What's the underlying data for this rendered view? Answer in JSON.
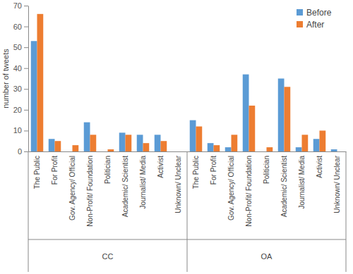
{
  "chart_data": {
    "type": "bar",
    "y_label": "number of tweets",
    "categories": [
      "The Public",
      "For Profit",
      "Gov. Agency/ Official",
      "Non-Profit/ Foundation",
      "Politician",
      "Academic/ Scientist",
      "Journalist/ Media",
      "Activist",
      "Unknown/ Unclear",
      "The Public",
      "For Profit",
      "Gov. Agency/ Official",
      "Non-Profit/ Foundation",
      "Politician",
      "Academic/ Scientist",
      "Journalist/ Media",
      "Activist",
      "Unknown/ Unclear"
    ],
    "groups": [
      "CC",
      "OA"
    ],
    "series": [
      {
        "name": "Before",
        "color": "#5b9bd5",
        "values": [
          53,
          6,
          0,
          14,
          0,
          9,
          8,
          8,
          0,
          15,
          4,
          2,
          37,
          0,
          35,
          2,
          6,
          1
        ]
      },
      {
        "name": "After",
        "color": "#ed7d31",
        "values": [
          66,
          5,
          3,
          8,
          1,
          8,
          4,
          5,
          0,
          12,
          3,
          8,
          22,
          2,
          31,
          8,
          10,
          0
        ]
      }
    ],
    "ylim": [
      0,
      70
    ],
    "yticks": [
      0,
      10,
      20,
      30,
      40,
      50,
      60,
      70
    ],
    "grid": false,
    "legend": "upper right"
  }
}
